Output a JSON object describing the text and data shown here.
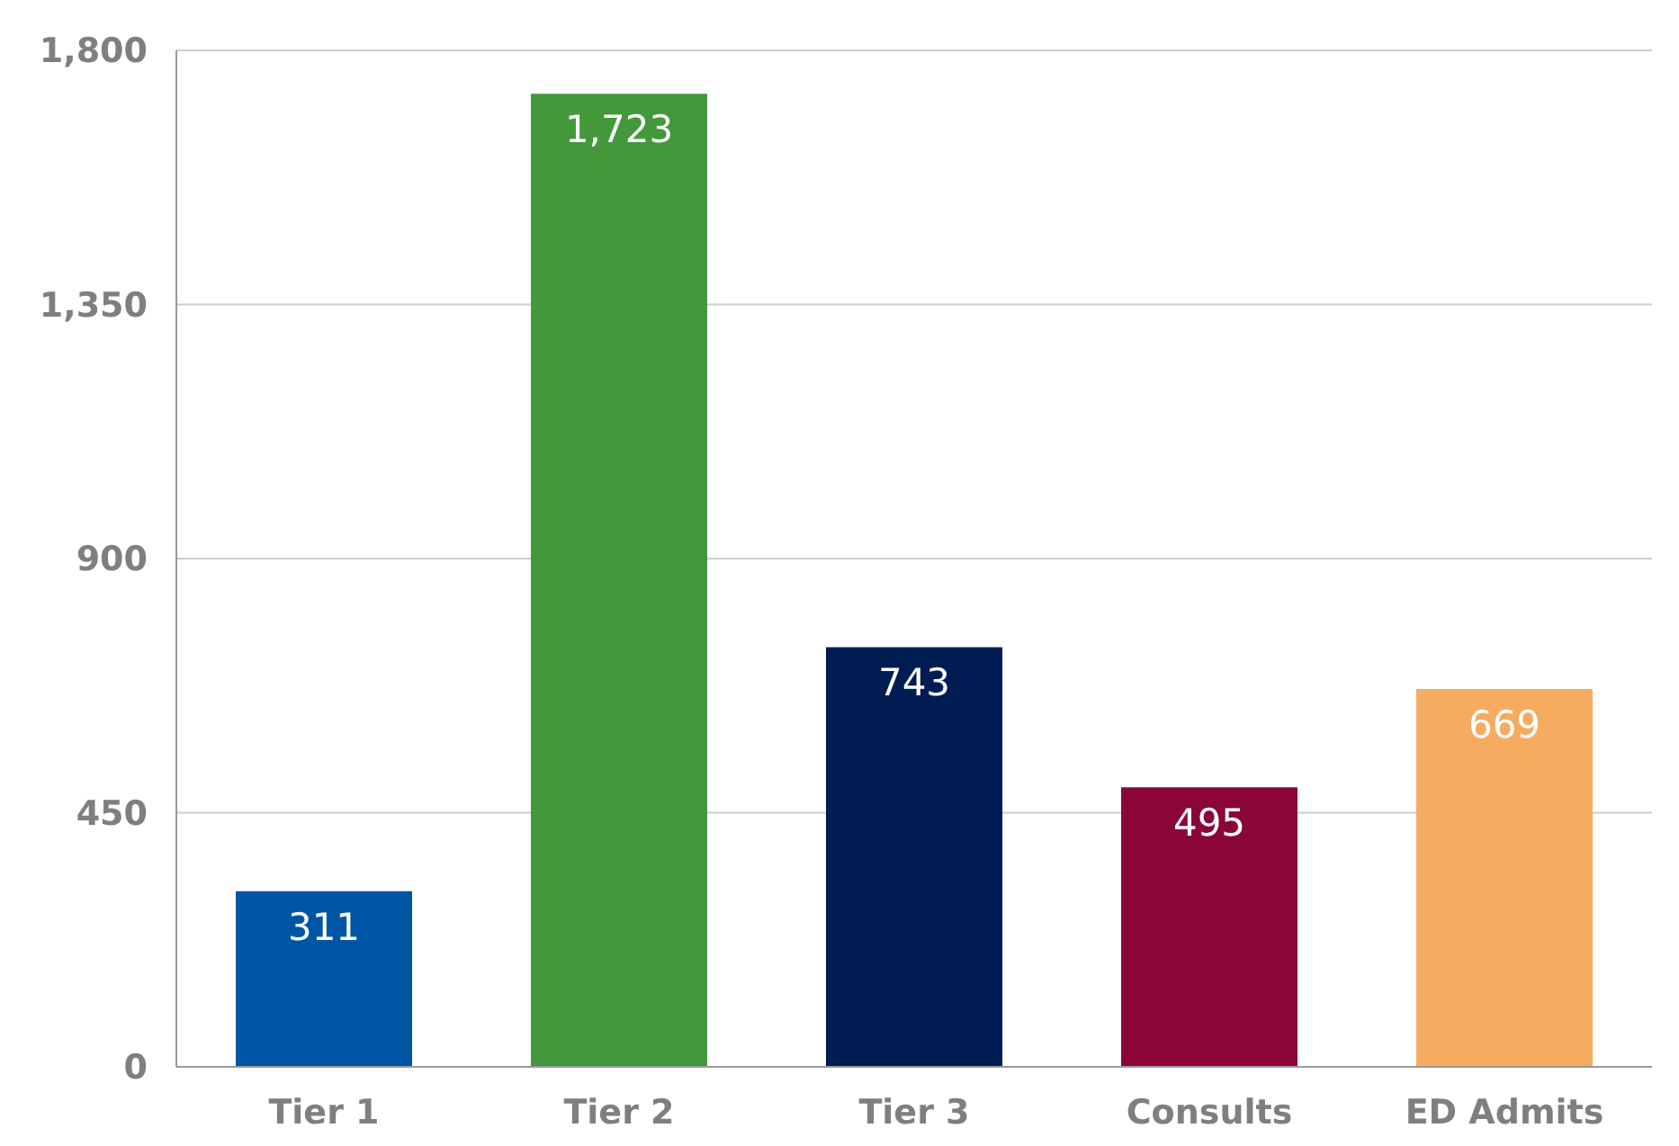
{
  "chart_data": {
    "type": "bar",
    "categories": [
      "Tier 1",
      "Tier 2",
      "Tier 3",
      "Consults",
      "ED Admits"
    ],
    "values": [
      311,
      1723,
      743,
      495,
      669
    ],
    "value_labels": [
      "311",
      "1,723",
      "743",
      "495",
      "669"
    ],
    "colors": [
      "#0055a5",
      "#43983a",
      "#001c52",
      "#8b0638",
      "#f5ac60"
    ],
    "ylim": [
      0,
      1800
    ],
    "yticks": [
      0,
      450,
      900,
      {
        "value": 1350,
        "label": "1,350"
      },
      {
        "value": 1800,
        "label": "1,800"
      }
    ],
    "grid": "y"
  }
}
